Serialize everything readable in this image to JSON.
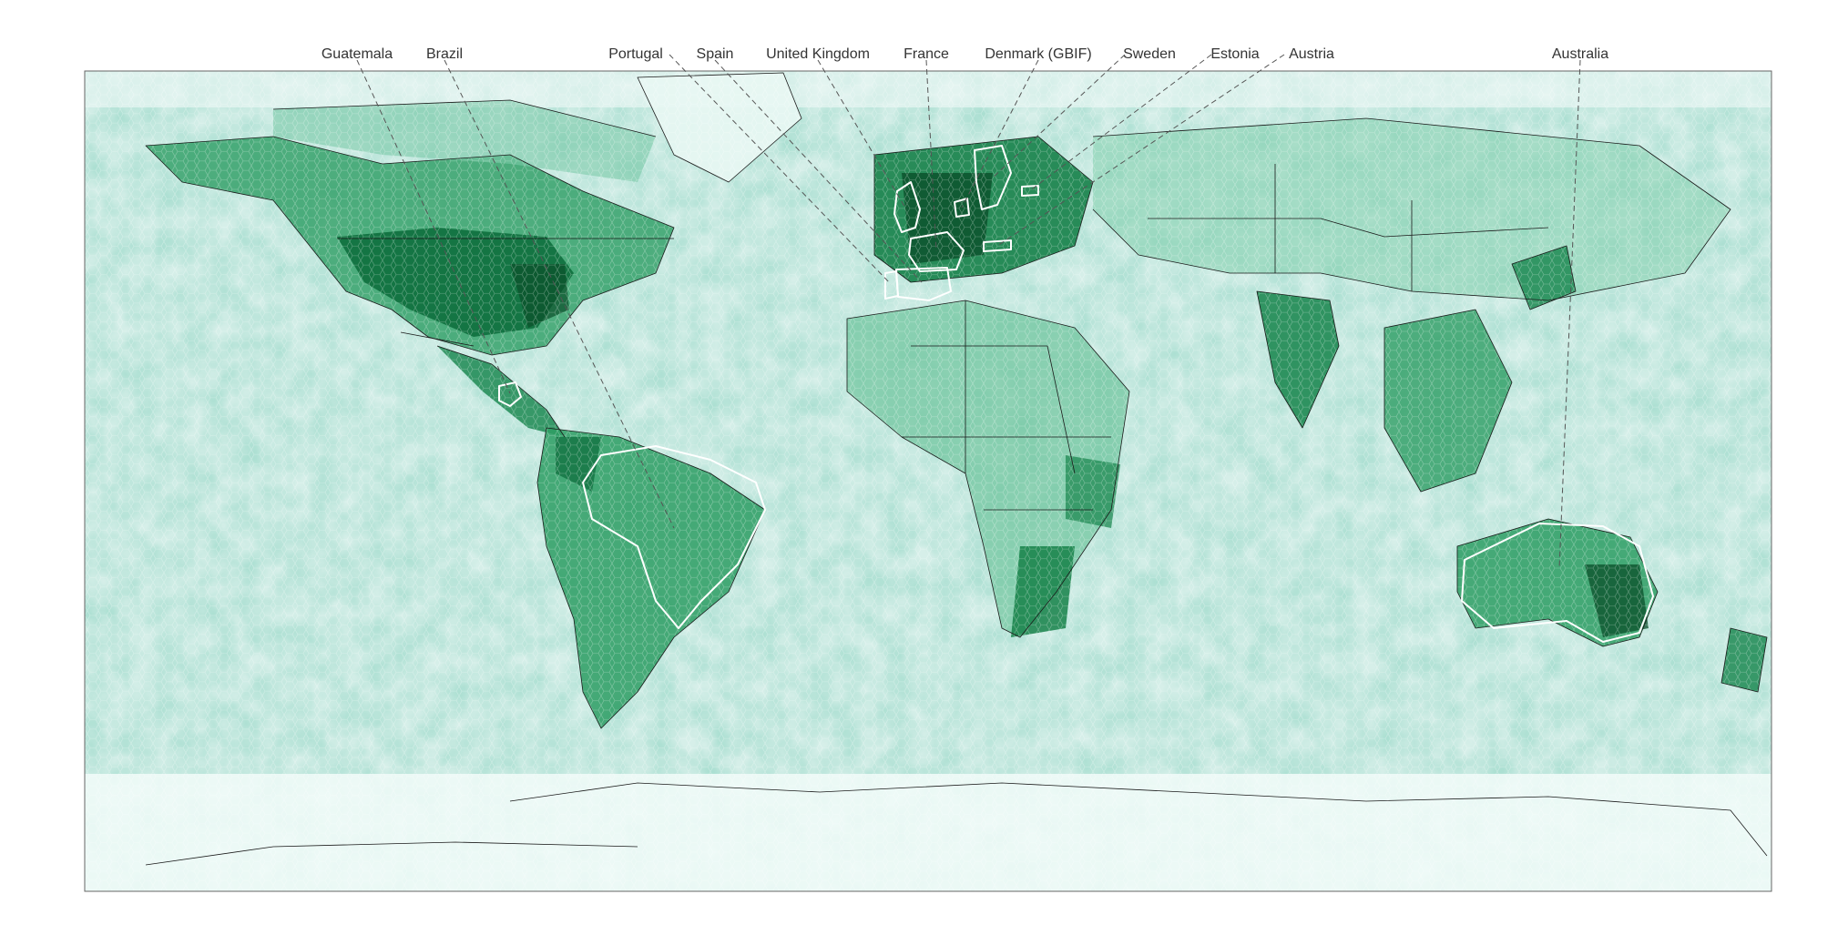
{
  "map": {
    "type": "hexbin-density-world-map",
    "projection": "equirectangular",
    "color_low": "#e5f5f9",
    "color_mid": "#41ae76",
    "color_high": "#00441b",
    "highlight_color": "#ffffff",
    "highlighted_countries": [
      {
        "id": "guatemala",
        "label": "Guatemala"
      },
      {
        "id": "brazil",
        "label": "Brazil"
      },
      {
        "id": "portugal",
        "label": "Portugal"
      },
      {
        "id": "spain",
        "label": "Spain"
      },
      {
        "id": "united-kingdom",
        "label": "United Kingdom"
      },
      {
        "id": "france",
        "label": "France"
      },
      {
        "id": "denmark",
        "label": "Denmark (GBIF)"
      },
      {
        "id": "sweden",
        "label": "Sweden"
      },
      {
        "id": "estonia",
        "label": "Estonia"
      },
      {
        "id": "austria",
        "label": "Austria"
      },
      {
        "id": "australia",
        "label": "Australia"
      }
    ]
  }
}
